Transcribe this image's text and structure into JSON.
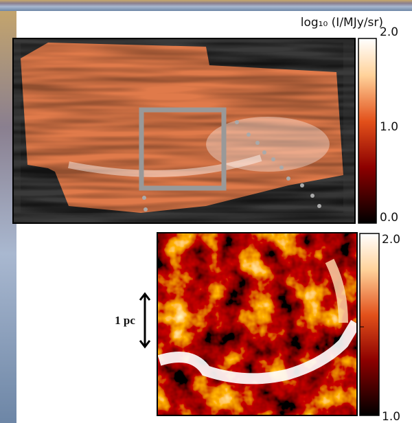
{
  "top_panel": {
    "colorbar": {
      "label": "log₁₀ (I/MJy/sr)",
      "ticks": [
        "2.0",
        "1.0",
        "0.0"
      ]
    }
  },
  "bottom_panel": {
    "colorbar": {
      "ticks": [
        "2.0",
        "1.0"
      ]
    },
    "scale_bar": "1 pc"
  }
}
